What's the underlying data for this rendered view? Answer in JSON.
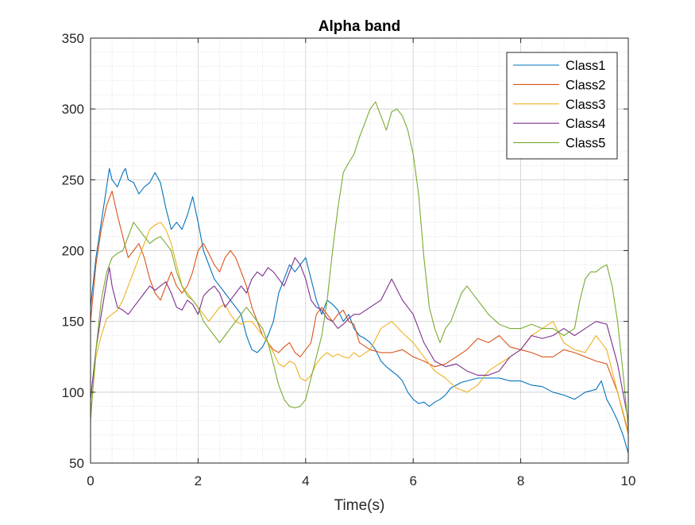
{
  "chart_data": {
    "type": "line",
    "title": "Alpha band",
    "xlabel": "Time(s)",
    "ylabel": "",
    "xlim": [
      0,
      10
    ],
    "ylim": [
      50,
      350
    ],
    "xticks": [
      0,
      2,
      4,
      6,
      8,
      10
    ],
    "yticks": [
      50,
      100,
      150,
      200,
      250,
      300,
      350
    ],
    "grid": true,
    "minor_grid": true,
    "legend_position": "top-right",
    "series": [
      {
        "name": "Class1",
        "color": "#0072BD",
        "x": [
          0,
          0.1,
          0.2,
          0.3,
          0.35,
          0.4,
          0.5,
          0.6,
          0.65,
          0.7,
          0.8,
          0.9,
          1.0,
          1.1,
          1.2,
          1.3,
          1.4,
          1.5,
          1.6,
          1.7,
          1.8,
          1.9,
          2.0,
          2.1,
          2.2,
          2.3,
          2.4,
          2.5,
          2.6,
          2.7,
          2.8,
          2.9,
          3.0,
          3.1,
          3.2,
          3.3,
          3.4,
          3.5,
          3.6,
          3.7,
          3.8,
          3.9,
          4.0,
          4.1,
          4.2,
          4.3,
          4.4,
          4.5,
          4.6,
          4.7,
          4.8,
          4.9,
          5.0,
          5.1,
          5.2,
          5.3,
          5.4,
          5.5,
          5.6,
          5.7,
          5.8,
          5.9,
          6.0,
          6.1,
          6.2,
          6.3,
          6.4,
          6.5,
          6.6,
          6.7,
          6.8,
          6.9,
          7.0,
          7.2,
          7.4,
          7.6,
          7.8,
          8.0,
          8.2,
          8.4,
          8.6,
          8.8,
          9.0,
          9.2,
          9.4,
          9.5,
          9.6,
          9.7,
          9.8,
          9.9,
          10.0
        ],
        "y": [
          160,
          195,
          220,
          245,
          258,
          250,
          245,
          255,
          258,
          250,
          248,
          240,
          245,
          248,
          255,
          248,
          230,
          215,
          220,
          215,
          225,
          238,
          220,
          200,
          190,
          180,
          175,
          170,
          165,
          160,
          155,
          140,
          130,
          128,
          132,
          140,
          150,
          170,
          180,
          190,
          185,
          190,
          195,
          180,
          165,
          155,
          165,
          162,
          158,
          150,
          155,
          145,
          140,
          138,
          135,
          130,
          122,
          118,
          115,
          112,
          108,
          100,
          95,
          92,
          93,
          90,
          93,
          95,
          98,
          103,
          105,
          107,
          108,
          110,
          110,
          110,
          108,
          108,
          105,
          104,
          100,
          98,
          95,
          100,
          102,
          108,
          95,
          88,
          80,
          70,
          57
        ]
      },
      {
        "name": "Class2",
        "color": "#D95319",
        "x": [
          0,
          0.1,
          0.2,
          0.3,
          0.4,
          0.5,
          0.6,
          0.7,
          0.8,
          0.9,
          1.0,
          1.1,
          1.2,
          1.3,
          1.4,
          1.5,
          1.6,
          1.7,
          1.8,
          1.9,
          2.0,
          2.1,
          2.2,
          2.3,
          2.4,
          2.5,
          2.6,
          2.7,
          2.8,
          2.9,
          3.0,
          3.1,
          3.2,
          3.3,
          3.4,
          3.5,
          3.6,
          3.7,
          3.8,
          3.9,
          4.0,
          4.1,
          4.2,
          4.3,
          4.4,
          4.5,
          4.6,
          4.7,
          4.8,
          4.9,
          5.0,
          5.2,
          5.4,
          5.6,
          5.8,
          6.0,
          6.2,
          6.4,
          6.6,
          6.8,
          7.0,
          7.2,
          7.4,
          7.6,
          7.8,
          8.0,
          8.2,
          8.4,
          8.6,
          8.8,
          9.0,
          9.2,
          9.4,
          9.6,
          9.8,
          10.0
        ],
        "y": [
          150,
          190,
          215,
          232,
          242,
          225,
          210,
          195,
          200,
          205,
          195,
          180,
          170,
          165,
          175,
          185,
          175,
          170,
          175,
          185,
          200,
          205,
          198,
          190,
          185,
          195,
          200,
          195,
          185,
          175,
          160,
          150,
          140,
          135,
          130,
          128,
          132,
          135,
          128,
          125,
          130,
          135,
          155,
          160,
          155,
          150,
          155,
          158,
          150,
          148,
          135,
          130,
          128,
          128,
          130,
          125,
          122,
          118,
          120,
          125,
          130,
          138,
          135,
          140,
          132,
          130,
          128,
          125,
          125,
          130,
          128,
          125,
          122,
          120,
          100,
          72
        ]
      },
      {
        "name": "Class3",
        "color": "#EDB120",
        "x": [
          0,
          0.1,
          0.2,
          0.3,
          0.4,
          0.5,
          0.6,
          0.7,
          0.8,
          0.9,
          1.0,
          1.1,
          1.2,
          1.3,
          1.4,
          1.5,
          1.6,
          1.7,
          1.8,
          1.9,
          2.0,
          2.1,
          2.2,
          2.3,
          2.4,
          2.5,
          2.6,
          2.7,
          2.8,
          2.9,
          3.0,
          3.1,
          3.2,
          3.3,
          3.4,
          3.5,
          3.6,
          3.7,
          3.8,
          3.9,
          4.0,
          4.1,
          4.2,
          4.3,
          4.4,
          4.5,
          4.6,
          4.7,
          4.8,
          4.9,
          5.0,
          5.2,
          5.4,
          5.6,
          5.8,
          6.0,
          6.2,
          6.4,
          6.6,
          6.8,
          7.0,
          7.2,
          7.4,
          7.6,
          7.8,
          8.0,
          8.2,
          8.4,
          8.6,
          8.8,
          9.0,
          9.2,
          9.4,
          9.6,
          9.8,
          10.0
        ],
        "y": [
          85,
          125,
          140,
          152,
          155,
          158,
          165,
          175,
          185,
          195,
          205,
          215,
          218,
          220,
          215,
          205,
          190,
          175,
          170,
          165,
          160,
          155,
          150,
          155,
          160,
          162,
          155,
          150,
          148,
          150,
          150,
          145,
          140,
          135,
          128,
          120,
          118,
          122,
          120,
          110,
          108,
          112,
          120,
          125,
          128,
          125,
          127,
          125,
          124,
          128,
          125,
          130,
          145,
          150,
          142,
          135,
          125,
          115,
          110,
          103,
          100,
          105,
          115,
          120,
          125,
          130,
          140,
          145,
          150,
          135,
          130,
          128,
          140,
          130,
          100,
          70
        ]
      },
      {
        "name": "Class4",
        "color": "#7E2F8E",
        "x": [
          0,
          0.1,
          0.2,
          0.3,
          0.35,
          0.4,
          0.5,
          0.6,
          0.7,
          0.8,
          0.9,
          1.0,
          1.1,
          1.2,
          1.3,
          1.4,
          1.5,
          1.6,
          1.7,
          1.8,
          1.9,
          2.0,
          2.1,
          2.2,
          2.3,
          2.4,
          2.5,
          2.6,
          2.7,
          2.8,
          2.9,
          3.0,
          3.1,
          3.2,
          3.3,
          3.4,
          3.5,
          3.6,
          3.7,
          3.8,
          3.9,
          4.0,
          4.1,
          4.2,
          4.3,
          4.4,
          4.5,
          4.6,
          4.7,
          4.8,
          4.9,
          5.0,
          5.2,
          5.4,
          5.6,
          5.8,
          6.0,
          6.2,
          6.4,
          6.6,
          6.8,
          7.0,
          7.2,
          7.4,
          7.6,
          7.8,
          8.0,
          8.2,
          8.4,
          8.6,
          8.8,
          9.0,
          9.2,
          9.4,
          9.6,
          9.8,
          10.0
        ],
        "y": [
          95,
          130,
          155,
          178,
          188,
          175,
          160,
          158,
          155,
          160,
          165,
          170,
          175,
          172,
          175,
          178,
          170,
          160,
          158,
          165,
          162,
          155,
          168,
          172,
          175,
          170,
          160,
          165,
          170,
          175,
          170,
          180,
          185,
          182,
          188,
          185,
          180,
          175,
          185,
          195,
          190,
          180,
          165,
          160,
          158,
          152,
          150,
          145,
          148,
          152,
          155,
          155,
          160,
          165,
          180,
          165,
          155,
          135,
          122,
          118,
          120,
          115,
          112,
          112,
          115,
          125,
          130,
          140,
          138,
          140,
          145,
          140,
          145,
          150,
          148,
          120,
          80
        ]
      },
      {
        "name": "Class5",
        "color": "#77AC30",
        "x": [
          0,
          0.1,
          0.2,
          0.3,
          0.4,
          0.5,
          0.6,
          0.7,
          0.8,
          0.9,
          1.0,
          1.1,
          1.2,
          1.3,
          1.4,
          1.5,
          1.6,
          1.7,
          1.8,
          1.9,
          2.0,
          2.1,
          2.2,
          2.3,
          2.4,
          2.5,
          2.6,
          2.7,
          2.8,
          2.9,
          3.0,
          3.1,
          3.2,
          3.3,
          3.4,
          3.5,
          3.6,
          3.7,
          3.8,
          3.9,
          4.0,
          4.1,
          4.2,
          4.3,
          4.4,
          4.5,
          4.6,
          4.7,
          4.8,
          4.9,
          5.0,
          5.1,
          5.2,
          5.3,
          5.4,
          5.5,
          5.6,
          5.7,
          5.8,
          5.9,
          6.0,
          6.1,
          6.2,
          6.3,
          6.4,
          6.5,
          6.6,
          6.7,
          6.8,
          6.9,
          7.0,
          7.2,
          7.4,
          7.6,
          7.8,
          8.0,
          8.2,
          8.4,
          8.6,
          8.8,
          9.0,
          9.1,
          9.2,
          9.3,
          9.4,
          9.5,
          9.6,
          9.7,
          9.8,
          9.9,
          10.0
        ],
        "y": [
          80,
          130,
          165,
          185,
          195,
          198,
          200,
          210,
          220,
          215,
          210,
          205,
          208,
          210,
          205,
          200,
          185,
          175,
          168,
          165,
          160,
          150,
          145,
          140,
          135,
          140,
          145,
          150,
          155,
          160,
          155,
          150,
          145,
          135,
          120,
          105,
          95,
          90,
          89,
          90,
          95,
          110,
          125,
          140,
          165,
          200,
          230,
          255,
          262,
          268,
          280,
          290,
          300,
          305,
          295,
          285,
          298,
          300,
          295,
          285,
          268,
          240,
          195,
          160,
          145,
          135,
          145,
          150,
          160,
          170,
          175,
          165,
          155,
          148,
          145,
          145,
          148,
          145,
          145,
          140,
          145,
          165,
          180,
          185,
          185,
          188,
          190,
          175,
          150,
          115,
          75
        ]
      }
    ]
  }
}
